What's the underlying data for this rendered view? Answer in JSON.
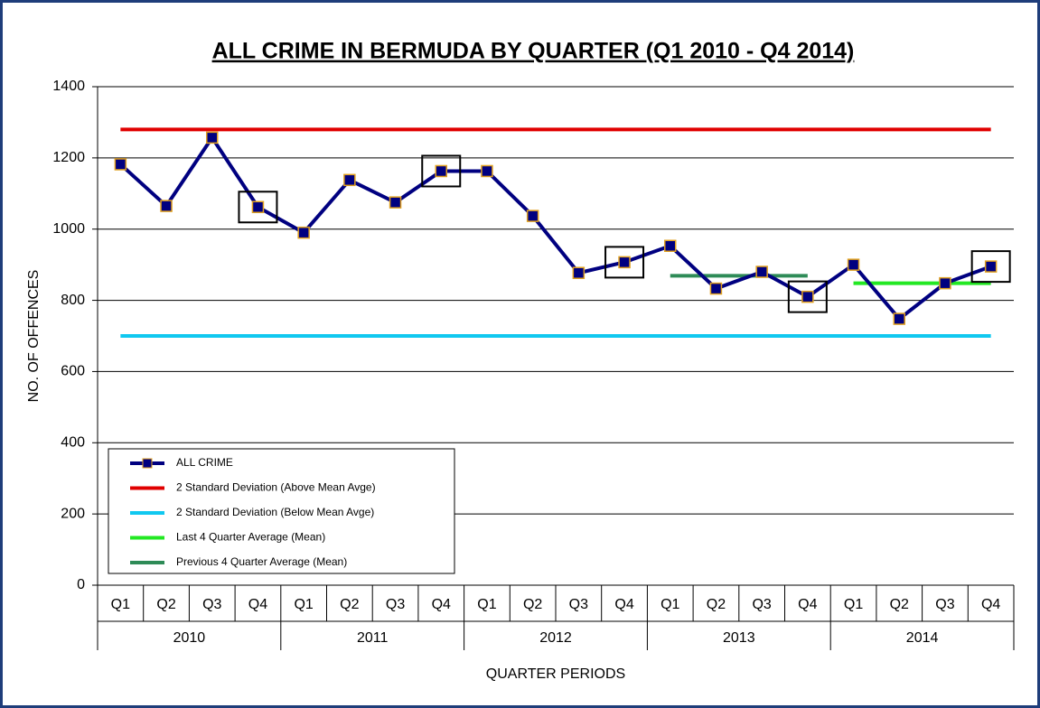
{
  "chart_data": {
    "type": "line",
    "title": "ALL CRIME IN BERMUDA BY QUARTER (Q1 2010 - Q4 2014)",
    "x_label": "QUARTER PERIODS",
    "y_label": "NO. OF OFFENCES",
    "categories": [
      "Q1",
      "Q2",
      "Q3",
      "Q4",
      "Q1",
      "Q2",
      "Q3",
      "Q4",
      "Q1",
      "Q2",
      "Q3",
      "Q4",
      "Q1",
      "Q2",
      "Q3",
      "Q4",
      "Q1",
      "Q2",
      "Q3",
      "Q4"
    ],
    "x_groups": [
      "2010",
      "2011",
      "2012",
      "2013",
      "2014"
    ],
    "ylim": [
      0,
      1400
    ],
    "yticks": [
      0,
      200,
      400,
      600,
      800,
      1000,
      1200,
      1400
    ],
    "grid": true,
    "legend": "lower left",
    "series": [
      {
        "name": "ALL CRIME",
        "color": "#000080",
        "marker": "square",
        "marker_edge": "#e0a020",
        "values": [
          1182,
          1065,
          1257,
          1062,
          990,
          1138,
          1075,
          1163,
          1163,
          1037,
          877,
          907,
          953,
          833,
          880,
          810,
          900,
          748,
          848,
          895
        ]
      },
      {
        "name": "2 Standard Deviation (Above Mean Avge)",
        "color": "#e00000",
        "values": [
          1280,
          1280,
          1280,
          1280,
          1280,
          1280,
          1280,
          1280,
          1280,
          1280,
          1280,
          1280,
          1280,
          1280,
          1280,
          1280,
          1280,
          1280,
          1280,
          1280
        ]
      },
      {
        "name": "2 Standard Deviation (Below Mean Avge)",
        "color": "#10c8f0",
        "values": [
          700,
          700,
          700,
          700,
          700,
          700,
          700,
          700,
          700,
          700,
          700,
          700,
          700,
          700,
          700,
          700,
          700,
          700,
          700,
          700
        ]
      },
      {
        "name": "Last 4 Quarter Average (Mean)",
        "color": "#22e822",
        "values": [
          null,
          null,
          null,
          null,
          null,
          null,
          null,
          null,
          null,
          null,
          null,
          null,
          null,
          null,
          null,
          null,
          848,
          848,
          848,
          848
        ]
      },
      {
        "name": "Previous 4 Quarter Average (Mean)",
        "color": "#2e8b57",
        "values": [
          null,
          null,
          null,
          null,
          null,
          null,
          null,
          null,
          null,
          null,
          null,
          null,
          869,
          869,
          869,
          869,
          null,
          null,
          null,
          null
        ]
      }
    ]
  }
}
